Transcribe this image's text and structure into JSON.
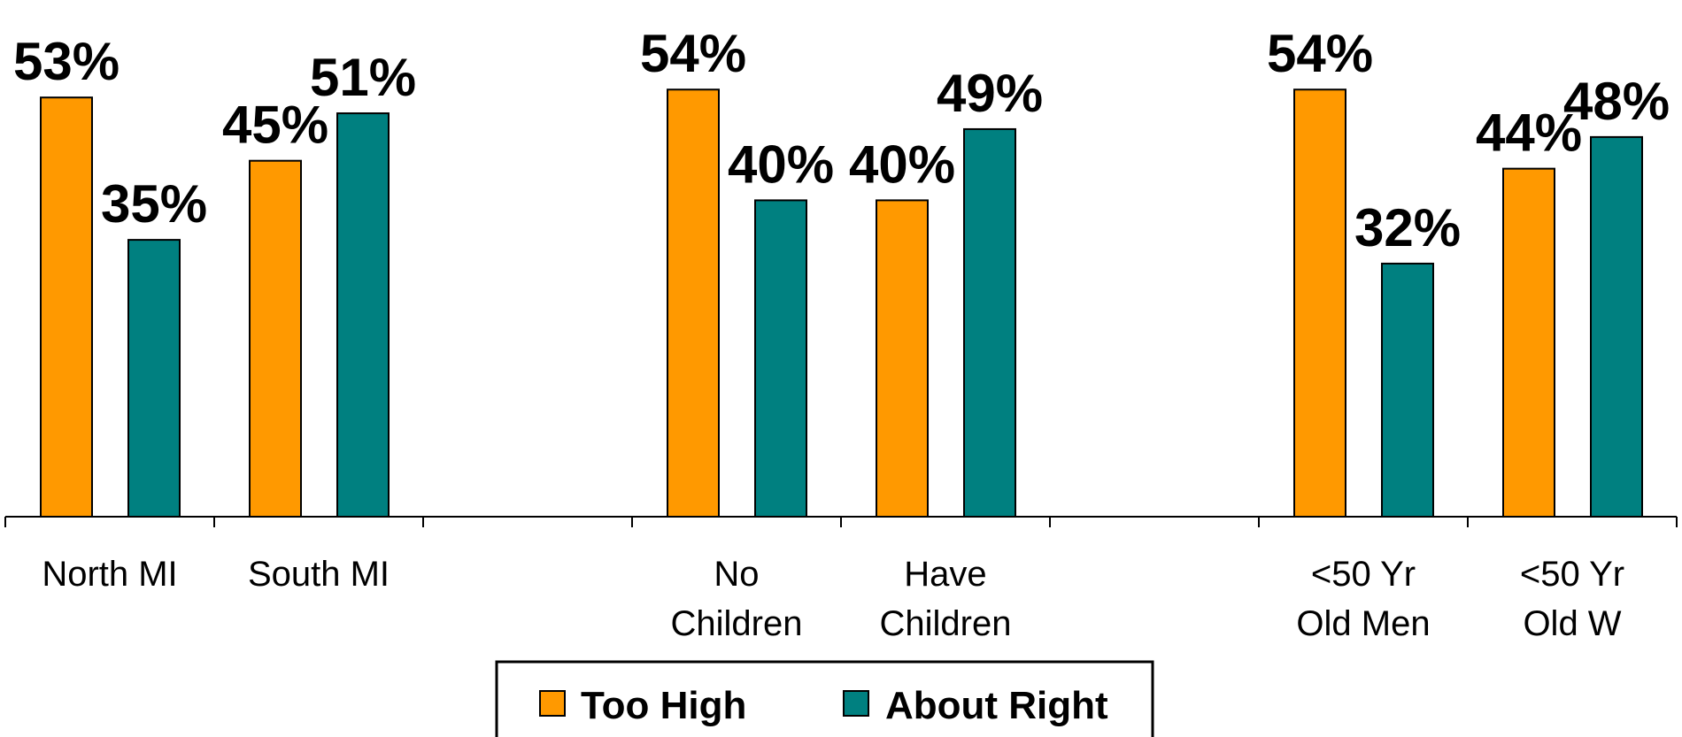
{
  "chart_data": {
    "type": "bar",
    "categories": [
      [
        "North MI"
      ],
      [
        "South MI"
      ],
      [
        ""
      ],
      [
        "No",
        "Children"
      ],
      [
        "Have",
        "Children"
      ],
      [
        ""
      ],
      [
        "<50 Yr",
        "Old Men"
      ],
      [
        "<50 Yr",
        "Old W"
      ]
    ],
    "series": [
      {
        "name": "Too High",
        "values": [
          53,
          45,
          null,
          54,
          40,
          null,
          54,
          44
        ],
        "color": "#FF9900"
      },
      {
        "name": "About Right",
        "values": [
          35,
          51,
          null,
          40,
          49,
          null,
          32,
          48
        ],
        "color": "#008080"
      }
    ],
    "value_labels": [
      [
        "53%",
        "45%",
        "",
        "54%",
        "40%",
        "",
        "54%",
        "44%"
      ],
      [
        "35%",
        "51%",
        "",
        "40%",
        "49%",
        "",
        "32%",
        "48%"
      ]
    ],
    "ylim": [
      0,
      65
    ],
    "grid": false,
    "legend_position": "bottom-center"
  }
}
